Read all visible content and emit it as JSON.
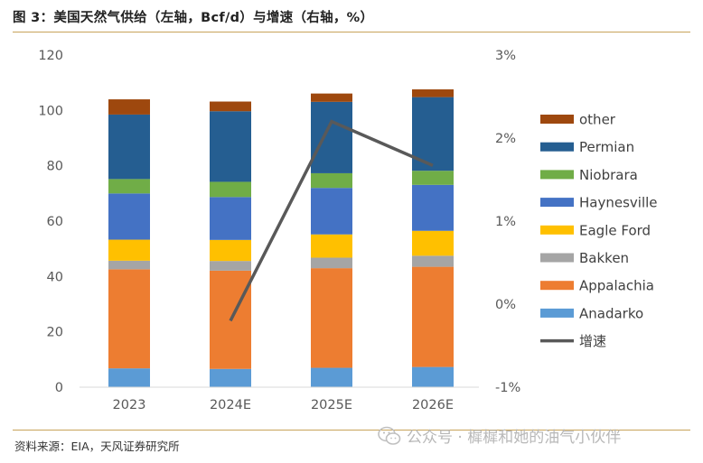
{
  "title": "图 3：美国天然气供给（左轴，Bcf/d）与增速（右轴，%）",
  "source": "资料来源：EIA，天风证券研究所",
  "watermark": "公众号 · 樨樨和她的油气小伙伴",
  "chart_data": {
    "type": "bar",
    "stacked": true,
    "categories": [
      "2023",
      "2024E",
      "2025E",
      "2026E"
    ],
    "left_axis": {
      "min": 0,
      "max": 120,
      "step": 20,
      "ticks": [
        "0",
        "20",
        "40",
        "60",
        "80",
        "100",
        "120"
      ]
    },
    "right_axis": {
      "min": -1,
      "max": 3,
      "step": 1,
      "ticks": [
        "-1%",
        "0%",
        "1%",
        "2%",
        "3%"
      ]
    },
    "series": [
      {
        "name": "Anadarko",
        "color": "#5b9bd5",
        "values": [
          6.8,
          6.6,
          7.0,
          7.3
        ]
      },
      {
        "name": "Appalachia",
        "color": "#ed7d31",
        "values": [
          35.8,
          35.5,
          36.0,
          36.2
        ]
      },
      {
        "name": "Bakken",
        "color": "#a5a5a5",
        "values": [
          3.1,
          3.5,
          3.8,
          4.0
        ]
      },
      {
        "name": "Eagle Ford",
        "color": "#ffc000",
        "values": [
          7.6,
          7.6,
          8.4,
          9.0
        ]
      },
      {
        "name": "Haynesville",
        "color": "#4472c4",
        "values": [
          16.7,
          15.5,
          16.8,
          16.6
        ]
      },
      {
        "name": "Niobrara",
        "color": "#70ad47",
        "values": [
          5.2,
          5.5,
          5.3,
          5.1
        ]
      },
      {
        "name": "Permian",
        "color": "#255e91",
        "values": [
          23.3,
          25.5,
          25.8,
          26.6
        ]
      },
      {
        "name": "other",
        "color": "#9e480e",
        "values": [
          5.5,
          3.5,
          3.0,
          2.8
        ]
      }
    ],
    "growth": {
      "name": "增速",
      "color": "#595959",
      "axis": "right",
      "x": [
        "2024E",
        "2025E",
        "2026E"
      ],
      "values": [
        -0.2,
        2.2,
        1.67
      ]
    },
    "legend_order": [
      "other",
      "Permian",
      "Niobrara",
      "Haynesville",
      "Eagle Ford",
      "Bakken",
      "Appalachia",
      "Anadarko",
      "增速"
    ],
    "legend_position": "right",
    "grid": false
  }
}
